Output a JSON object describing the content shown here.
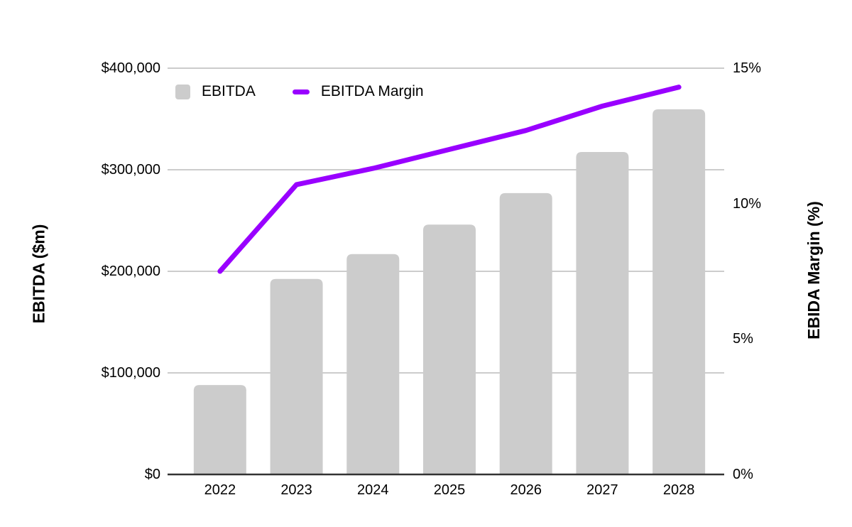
{
  "chart_data": {
    "type": "bar",
    "subtype": "combo-bar-line-dual-axis",
    "categories": [
      "2022",
      "2023",
      "2024",
      "2025",
      "2026",
      "2027",
      "2028"
    ],
    "series": [
      {
        "name": "EBITDA",
        "type": "bar",
        "axis": "left",
        "color": "#cccccc",
        "values": [
          88000,
          192500,
          217000,
          246000,
          277000,
          317500,
          359500
        ]
      },
      {
        "name": "EBITDA Margin",
        "type": "line",
        "axis": "right",
        "color": "#9900ff",
        "values": [
          7.5,
          10.7,
          11.3,
          12.0,
          12.7,
          13.6,
          14.3
        ]
      }
    ],
    "left_axis": {
      "title": "EBITDA ($m)",
      "min": 0,
      "max": 400000,
      "ticks": [
        {
          "label": "$0",
          "value": 0
        },
        {
          "label": "$100,000",
          "value": 100000
        },
        {
          "label": "$200,000",
          "value": 200000
        },
        {
          "label": "$300,000",
          "value": 300000
        },
        {
          "label": "$400,000",
          "value": 400000
        }
      ]
    },
    "right_axis": {
      "title": "EBIDA Margin (%)",
      "min": 0,
      "max": 15,
      "ticks": [
        {
          "label": "0%",
          "value": 0
        },
        {
          "label": "5%",
          "value": 5
        },
        {
          "label": "10%",
          "value": 10
        },
        {
          "label": "15%",
          "value": 15
        }
      ]
    },
    "legend": [
      {
        "label": "EBITDA",
        "swatch": "square",
        "color": "#cccccc"
      },
      {
        "label": "EBITDA Margin",
        "swatch": "line",
        "color": "#9900ff"
      }
    ],
    "legend_position": "top-left-inside",
    "grid": true,
    "colors": {
      "gridline": "#cccccc",
      "axis_line": "#333333",
      "text": "#000000",
      "background": "#ffffff"
    }
  }
}
